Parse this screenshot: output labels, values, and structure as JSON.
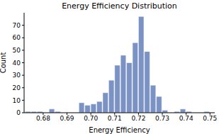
{
  "chart_data": {
    "type": "histogram",
    "title": "Energy Efficiency Distribution",
    "x_label": "Energy Efficiency",
    "y_label": "Count",
    "bins": [
      0.6725,
      0.675,
      0.6775,
      0.68,
      0.6825,
      0.685,
      0.6875,
      0.69,
      0.6925,
      0.695,
      0.6975,
      0.7,
      0.7025,
      0.705,
      0.7075,
      0.71,
      0.7125,
      0.715,
      0.7175,
      0.72,
      0.7225,
      0.725,
      0.7275,
      0.73,
      0.7325,
      0.735,
      0.7375,
      0.74,
      0.7425,
      0.745,
      0.7475,
      0.75
    ],
    "counts": [
      1,
      1,
      1,
      0,
      3,
      1,
      0,
      0,
      0,
      8,
      6,
      7,
      9,
      16,
      26,
      38,
      46,
      40,
      56,
      77,
      49,
      22,
      13,
      2,
      0,
      1,
      3,
      1,
      0,
      0,
      1
    ],
    "color": "#7a92c4",
    "xlim": [
      0.672,
      0.752
    ],
    "xticks": [
      0.68,
      0.69,
      {
        "value": 0.7,
        "label": "0.70"
      },
      0.71,
      0.72,
      0.73,
      0.74,
      0.75
    ],
    "ylim": [
      0,
      80
    ],
    "yticks": [
      0,
      10,
      20,
      30,
      40,
      50,
      60,
      70
    ],
    "grid": false
  }
}
